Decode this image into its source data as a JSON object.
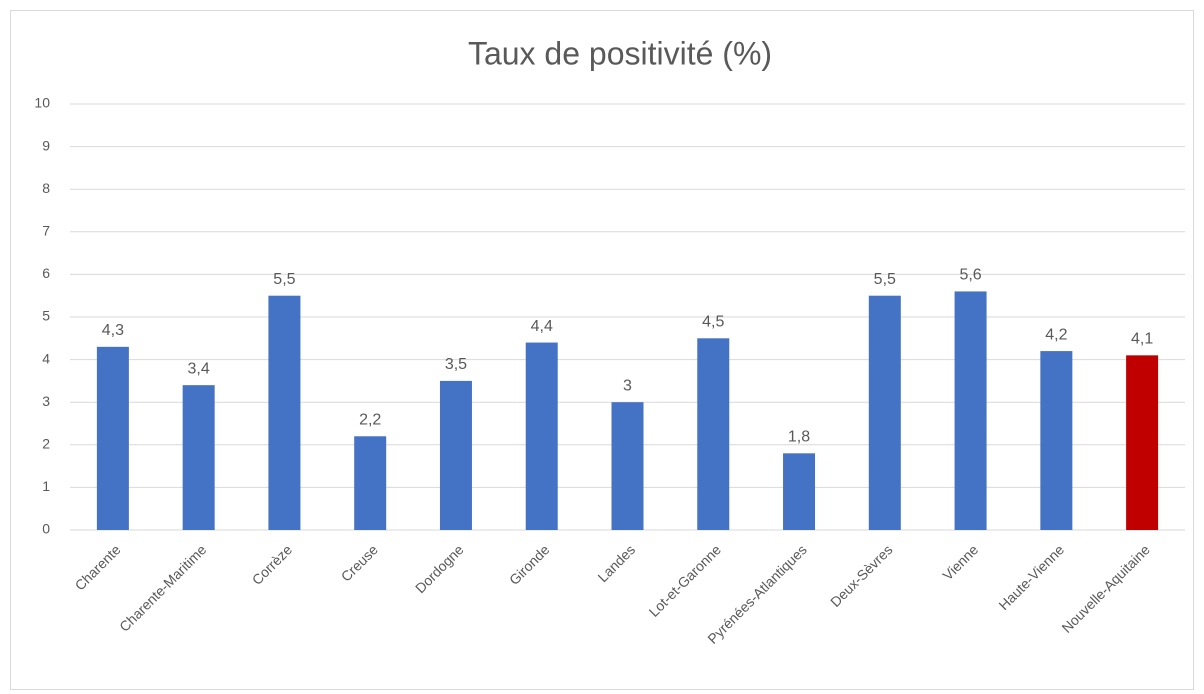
{
  "chart_data": {
    "type": "bar",
    "title": "Taux de positivité (%)",
    "categories": [
      "Charente",
      "Charente-Maritime",
      "Corrèze",
      "Creuse",
      "Dordogne",
      "Gironde",
      "Landes",
      "Lot-et-Garonne",
      "Pyrénées-Atlantiques",
      "Deux-Sèvres",
      "Vienne",
      "Haute-Vienne",
      "Nouvelle-Aquitaine"
    ],
    "values": [
      4.3,
      3.4,
      5.5,
      2.2,
      3.5,
      4.4,
      3,
      4.5,
      1.8,
      5.5,
      5.6,
      4.2,
      4.1
    ],
    "value_labels": [
      "4,3",
      "3,4",
      "5,5",
      "2,2",
      "3,5",
      "4,4",
      "3",
      "4,5",
      "1,8",
      "5,5",
      "5,6",
      "4,2",
      "4,1"
    ],
    "colors": [
      "#4472c4",
      "#4472c4",
      "#4472c4",
      "#4472c4",
      "#4472c4",
      "#4472c4",
      "#4472c4",
      "#4472c4",
      "#4472c4",
      "#4472c4",
      "#4472c4",
      "#4472c4",
      "#c00000"
    ],
    "ylim": [
      0,
      10
    ],
    "yticks": [
      0,
      1,
      2,
      3,
      4,
      5,
      6,
      7,
      8,
      9,
      10
    ],
    "grid": true
  }
}
